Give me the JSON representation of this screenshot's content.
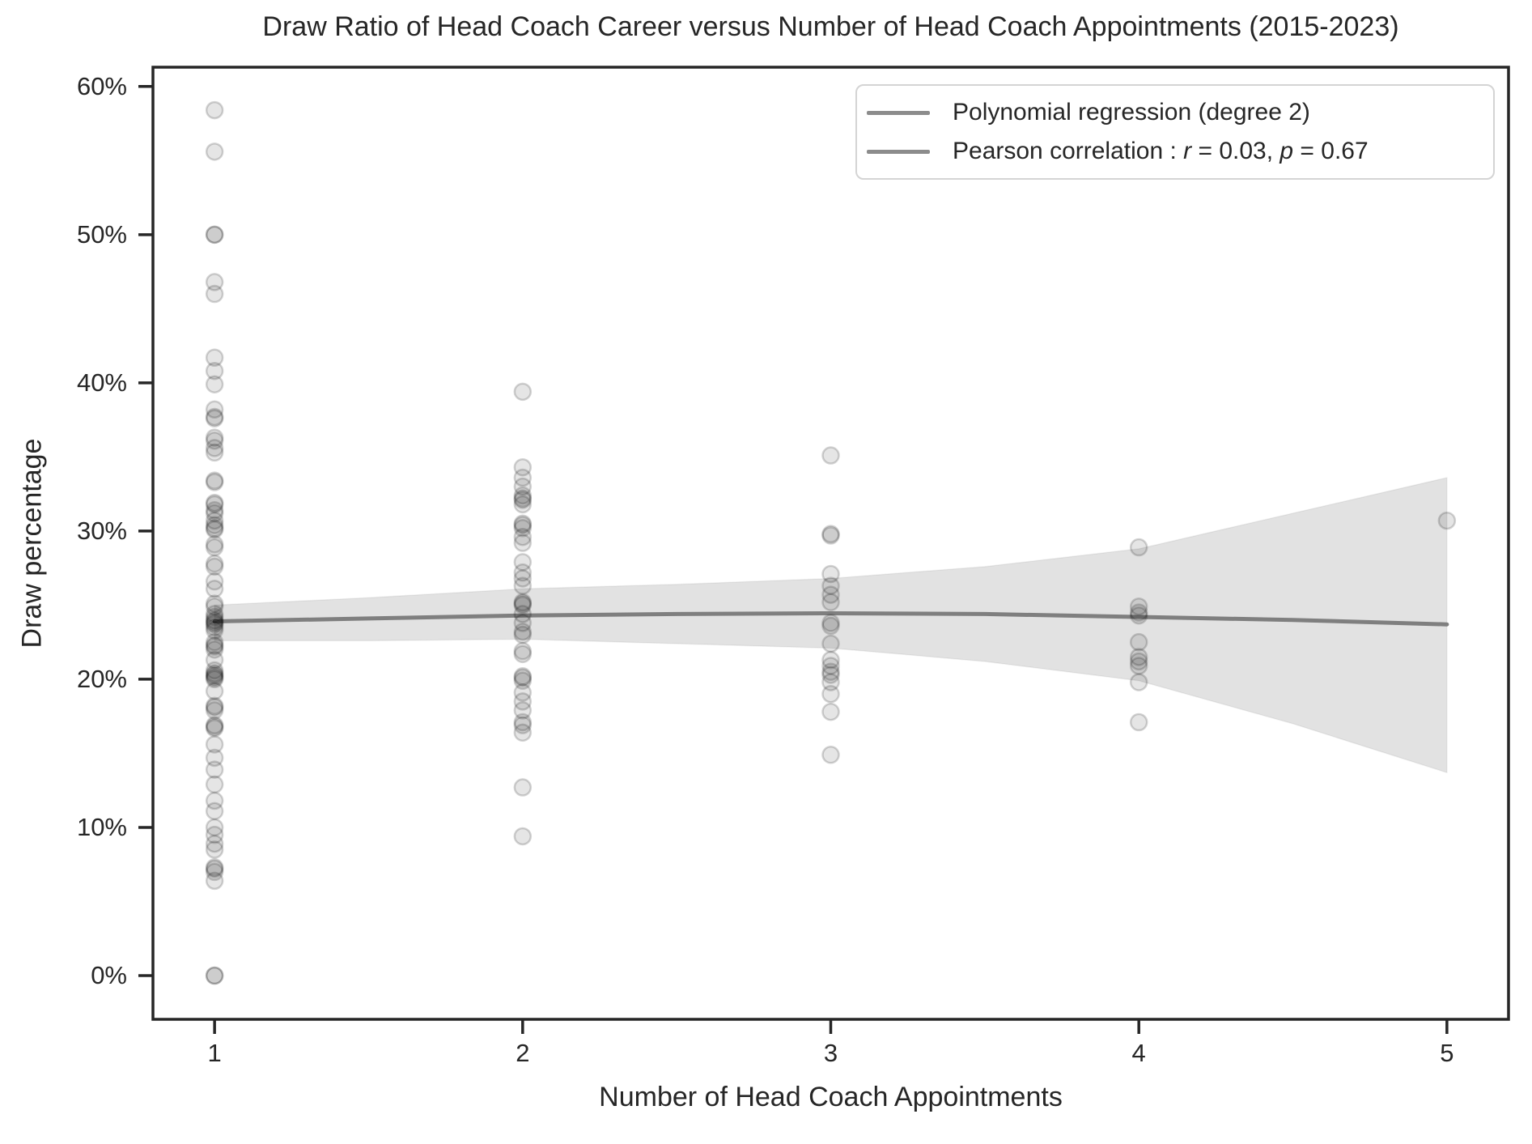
{
  "colors": {
    "text": "#262626",
    "spine": "#262626",
    "point_fill": "rgba(0,0,0,0.10)",
    "point_edge": "rgba(0,0,0,0.17)",
    "regression_line": "#7f7f7f",
    "confidence_band": "rgba(0,0,0,0.115)",
    "legend_line": "#8c8c8c",
    "legend_border": "#d4d4d4"
  },
  "chart_data": {
    "type": "scatter",
    "title": "Draw Ratio of Head Coach Career versus Number of Head Coach Appointments (2015-2023)",
    "xlabel": "Number of Head Coach Appointments",
    "ylabel": "Draw percentage",
    "xlim": [
      0.8,
      5.2
    ],
    "ylim_pct": [
      -2.95,
      61.3
    ],
    "x_ticks": [
      {
        "value": 1,
        "label": "1"
      },
      {
        "value": 2,
        "label": "2"
      },
      {
        "value": 3,
        "label": "3"
      },
      {
        "value": 4,
        "label": "4"
      },
      {
        "value": 5,
        "label": "5"
      }
    ],
    "y_ticks": [
      {
        "value": 0,
        "label": "0%"
      },
      {
        "value": 10,
        "label": "10%"
      },
      {
        "value": 20,
        "label": "20%"
      },
      {
        "value": 30,
        "label": "30%"
      },
      {
        "value": 40,
        "label": "40%"
      },
      {
        "value": 50,
        "label": "50%"
      },
      {
        "value": 60,
        "label": "60%"
      }
    ],
    "grid": false,
    "legend_position": "upper right",
    "legend": {
      "item1": {
        "label": "Polynomial regression (degree 2)"
      },
      "item2": {
        "prefix": "Pearson correlation : ",
        "r_sym": "r",
        "r_val": " = 0.03, ",
        "p_sym": "p",
        "p_val": " = 0.67"
      }
    },
    "regression_line": {
      "x": [
        1,
        1.5,
        2,
        2.5,
        3,
        3.5,
        4,
        4.5,
        5
      ],
      "y_pct": [
        23.9,
        24.1,
        24.3,
        24.4,
        24.45,
        24.4,
        24.2,
        24.0,
        23.7
      ]
    },
    "confidence_band": {
      "x": [
        1,
        1.5,
        2,
        2.5,
        3,
        3.5,
        4,
        4.5,
        5
      ],
      "upper_pct": [
        25.0,
        25.5,
        26.1,
        26.4,
        26.8,
        27.6,
        28.8,
        31.2,
        33.6
      ],
      "lower_pct": [
        22.6,
        22.6,
        22.7,
        22.4,
        22.1,
        21.2,
        19.9,
        17.0,
        13.7
      ]
    },
    "points": [
      [
        1,
        58.4
      ],
      [
        1,
        55.6
      ],
      [
        1,
        50.0
      ],
      [
        1,
        50.0
      ],
      [
        1,
        46.8
      ],
      [
        1,
        46.0
      ],
      [
        1,
        41.7
      ],
      [
        1,
        40.8
      ],
      [
        1,
        39.9
      ],
      [
        1,
        38.2
      ],
      [
        1,
        37.7
      ],
      [
        1,
        37.6
      ],
      [
        1,
        36.3
      ],
      [
        1,
        36.1
      ],
      [
        1,
        35.6
      ],
      [
        1,
        35.3
      ],
      [
        1,
        33.4
      ],
      [
        1,
        33.3
      ],
      [
        1,
        31.9
      ],
      [
        1,
        31.8
      ],
      [
        1,
        31.4
      ],
      [
        1,
        31.2
      ],
      [
        1,
        30.7
      ],
      [
        1,
        30.4
      ],
      [
        1,
        30.2
      ],
      [
        1,
        30.1
      ],
      [
        1,
        29.1
      ],
      [
        1,
        28.9
      ],
      [
        1,
        27.8
      ],
      [
        1,
        27.6
      ],
      [
        1,
        26.6
      ],
      [
        1,
        26.1
      ],
      [
        1,
        25.1
      ],
      [
        1,
        24.9
      ],
      [
        1,
        24.4
      ],
      [
        1,
        24.2
      ],
      [
        1,
        24.0
      ],
      [
        1,
        23.9
      ],
      [
        1,
        23.8
      ],
      [
        1,
        23.7
      ],
      [
        1,
        23.5
      ],
      [
        1,
        23.3
      ],
      [
        1,
        22.5
      ],
      [
        1,
        22.3
      ],
      [
        1,
        22.2
      ],
      [
        1,
        22.0
      ],
      [
        1,
        21.3
      ],
      [
        1,
        20.6
      ],
      [
        1,
        20.4
      ],
      [
        1,
        20.3
      ],
      [
        1,
        20.2
      ],
      [
        1,
        20.1
      ],
      [
        1,
        20.0
      ],
      [
        1,
        19.2
      ],
      [
        1,
        18.2
      ],
      [
        1,
        18.1
      ],
      [
        1,
        17.9
      ],
      [
        1,
        16.9
      ],
      [
        1,
        16.8
      ],
      [
        1,
        16.7
      ],
      [
        1,
        15.6
      ],
      [
        1,
        14.7
      ],
      [
        1,
        13.9
      ],
      [
        1,
        12.9
      ],
      [
        1,
        11.8
      ],
      [
        1,
        11.1
      ],
      [
        1,
        10.0
      ],
      [
        1,
        9.5
      ],
      [
        1,
        8.9
      ],
      [
        1,
        8.5
      ],
      [
        1,
        7.3
      ],
      [
        1,
        7.2
      ],
      [
        1,
        7.0
      ],
      [
        1,
        6.4
      ],
      [
        1,
        0.0
      ],
      [
        1,
        0.0
      ],
      [
        2,
        39.4
      ],
      [
        2,
        34.3
      ],
      [
        2,
        33.6
      ],
      [
        2,
        33.0
      ],
      [
        2,
        32.4
      ],
      [
        2,
        32.2
      ],
      [
        2,
        32.1
      ],
      [
        2,
        31.8
      ],
      [
        2,
        30.5
      ],
      [
        2,
        30.4
      ],
      [
        2,
        30.2
      ],
      [
        2,
        29.6
      ],
      [
        2,
        29.2
      ],
      [
        2,
        27.9
      ],
      [
        2,
        27.2
      ],
      [
        2,
        26.8
      ],
      [
        2,
        26.3
      ],
      [
        2,
        25.2
      ],
      [
        2,
        25.1
      ],
      [
        2,
        25.0
      ],
      [
        2,
        24.4
      ],
      [
        2,
        23.8
      ],
      [
        2,
        23.2
      ],
      [
        2,
        23.0
      ],
      [
        2,
        21.9
      ],
      [
        2,
        21.7
      ],
      [
        2,
        20.2
      ],
      [
        2,
        20.1
      ],
      [
        2,
        19.9
      ],
      [
        2,
        19.1
      ],
      [
        2,
        18.5
      ],
      [
        2,
        17.9
      ],
      [
        2,
        17.1
      ],
      [
        2,
        16.9
      ],
      [
        2,
        16.4
      ],
      [
        2,
        12.7
      ],
      [
        2,
        9.4
      ],
      [
        3,
        35.1
      ],
      [
        3,
        29.8
      ],
      [
        3,
        29.7
      ],
      [
        3,
        27.1
      ],
      [
        3,
        26.3
      ],
      [
        3,
        25.7
      ],
      [
        3,
        25.2
      ],
      [
        3,
        23.8
      ],
      [
        3,
        23.6
      ],
      [
        3,
        22.4
      ],
      [
        3,
        21.3
      ],
      [
        3,
        20.9
      ],
      [
        3,
        20.5
      ],
      [
        3,
        20.3
      ],
      [
        3,
        19.8
      ],
      [
        3,
        19.0
      ],
      [
        3,
        17.8
      ],
      [
        3,
        14.9
      ],
      [
        4,
        28.9
      ],
      [
        4,
        24.9
      ],
      [
        4,
        24.5
      ],
      [
        4,
        24.3
      ],
      [
        4,
        22.5
      ],
      [
        4,
        21.5
      ],
      [
        4,
        21.2
      ],
      [
        4,
        20.9
      ],
      [
        4,
        19.8
      ],
      [
        4,
        17.1
      ],
      [
        5,
        30.7
      ]
    ]
  }
}
